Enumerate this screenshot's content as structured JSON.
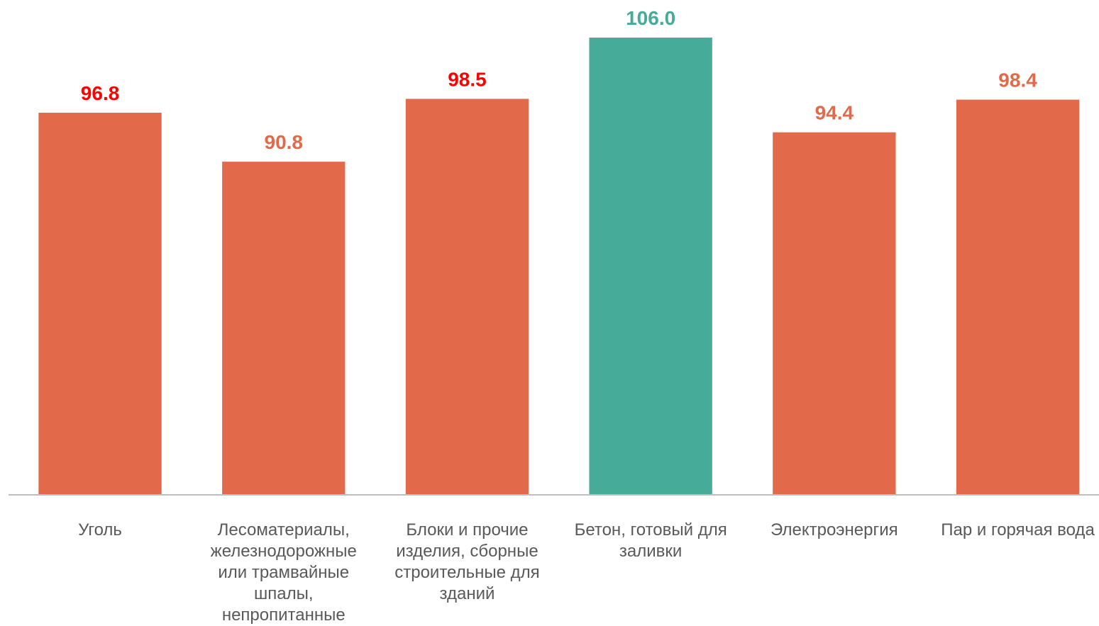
{
  "chart_data": {
    "type": "bar",
    "categories": [
      "Уголь",
      "Лесоматериалы, железнодорожные или трамвайные шпалы, непропитанные",
      "Блоки и прочие изделия, сборные строительные для зданий",
      "Бетон, готовый для заливки",
      "Электроэнергия",
      "Пар и горячая вода"
    ],
    "values": [
      96.8,
      90.8,
      98.5,
      106.0,
      94.4,
      98.4
    ],
    "value_labels": [
      "96.8",
      "90.8",
      "98.5",
      "106.0",
      "94.4",
      "98.4"
    ],
    "colors": [
      "#e2694a",
      "#e2694a",
      "#e2694a",
      "#46ab99",
      "#e2694a",
      "#e2694a"
    ],
    "label_colors": [
      "#ff0000",
      "#e2694a",
      "#ff0000",
      "#46ab99",
      "#e2694a",
      "#e2694a"
    ],
    "ylim": [
      50,
      110
    ]
  }
}
